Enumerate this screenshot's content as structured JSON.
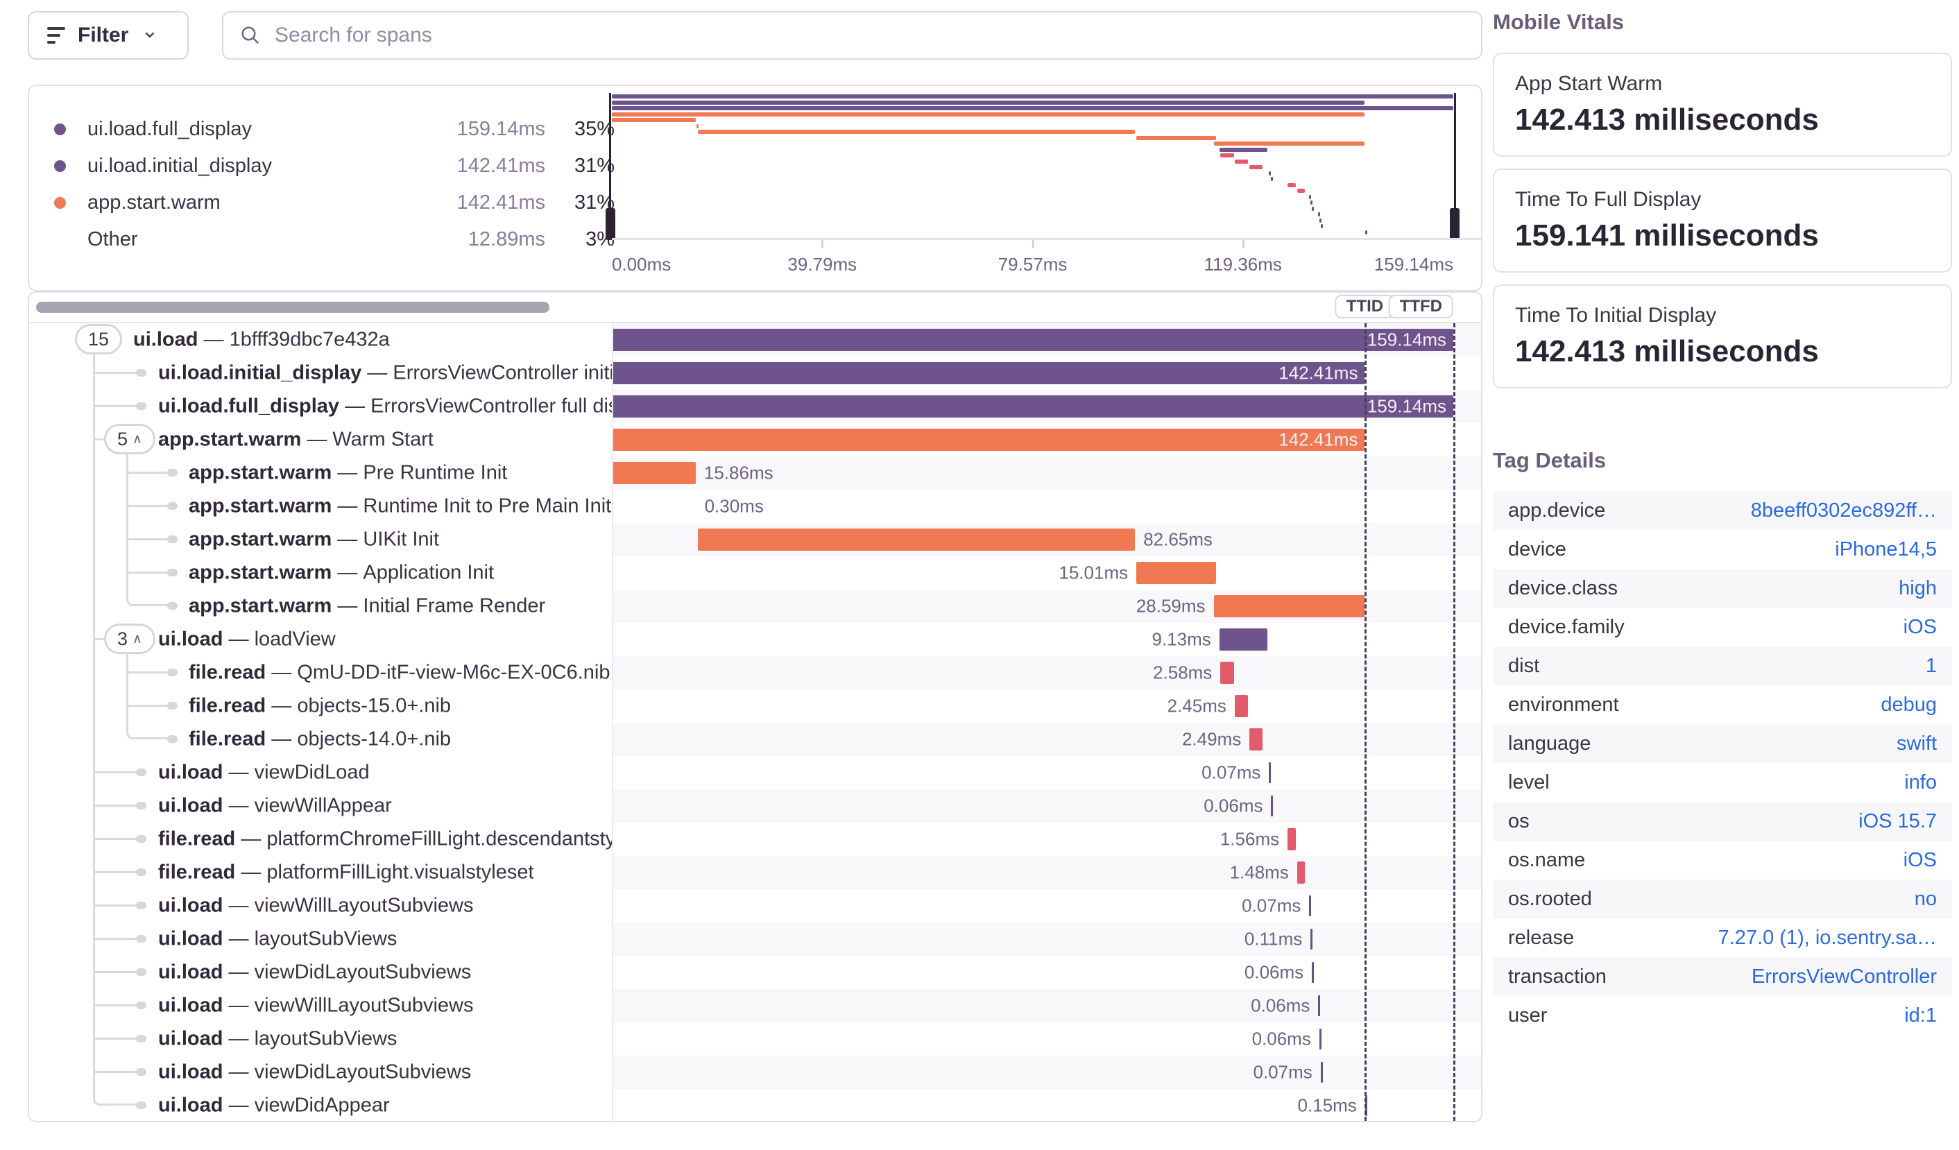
{
  "strings": {
    "sep": "—"
  },
  "filter": {
    "label": "Filter"
  },
  "search": {
    "placeholder": "Search for spans"
  },
  "legend": {
    "items": [
      {
        "label": "ui.load.full_display",
        "duration": "159.14ms",
        "percent": "35%",
        "color": "#6e538c"
      },
      {
        "label": "ui.load.initial_display",
        "duration": "142.41ms",
        "percent": "31%",
        "color": "#6e538c"
      },
      {
        "label": "app.start.warm",
        "duration": "142.41ms",
        "percent": "31%",
        "color": "#f07852"
      },
      {
        "label": "Other",
        "duration": "12.89ms",
        "percent": "3%",
        "color": ""
      }
    ]
  },
  "minimap": {
    "axis": [
      {
        "label": "0.00ms",
        "ms": 0,
        "anchor": "start"
      },
      {
        "label": "39.79ms",
        "ms": 39.79,
        "anchor": "center"
      },
      {
        "label": "79.57ms",
        "ms": 79.57,
        "anchor": "center"
      },
      {
        "label": "119.36ms",
        "ms": 119.36,
        "anchor": "center"
      },
      {
        "label": "159.14ms",
        "ms": 159.14,
        "anchor": "end"
      }
    ]
  },
  "waterfall": {
    "total_ms": 159.14,
    "ttid": {
      "label": "TTID",
      "ms": 142.41
    },
    "ttfd": {
      "label": "TTFD",
      "ms": 159.14
    }
  },
  "spans": [
    {
      "op": "ui.load",
      "desc": "1bfff39dbc7e432a",
      "depth": 0,
      "badge": "15",
      "chevron": false,
      "start": 0,
      "dur": 159.14,
      "label": "159.14ms",
      "side": "in",
      "color": "purple",
      "kind": "bar",
      "g": [
        "s1"
      ]
    },
    {
      "op": "ui.load.initial_display",
      "desc": "ErrorsViewController initial display",
      "depth": 1,
      "start": 0,
      "dur": 142.41,
      "label": "142.41ms",
      "side": "in",
      "color": "purple",
      "kind": "bar",
      "g": [
        "p1"
      ]
    },
    {
      "op": "ui.load.full_display",
      "desc": "ErrorsViewController full display",
      "depth": 1,
      "start": 0,
      "dur": 159.14,
      "label": "159.14ms",
      "side": "in",
      "color": "purple",
      "kind": "bar",
      "g": [
        "p1"
      ]
    },
    {
      "op": "app.start.warm",
      "desc": "Warm Start",
      "depth": 1,
      "badge": "5",
      "chevron": true,
      "start": 0,
      "dur": 142.41,
      "label": "142.41ms",
      "side": "in",
      "color": "orange",
      "kind": "bar",
      "g": [
        "p1",
        "s2"
      ]
    },
    {
      "op": "app.start.warm",
      "desc": "Pre Runtime Init",
      "depth": 2,
      "start": 0,
      "dur": 15.86,
      "label": "15.86ms",
      "side": "right",
      "color": "orange",
      "kind": "bar",
      "g": [
        "p1",
        "p2"
      ]
    },
    {
      "op": "app.start.warm",
      "desc": "Runtime Init to Pre Main Initializers",
      "depth": 2,
      "start": 15.95,
      "dur": 0.3,
      "label": "0.30ms",
      "side": "right",
      "color": "orange",
      "kind": "thin",
      "g": [
        "p1",
        "p2"
      ]
    },
    {
      "op": "app.start.warm",
      "desc": "UIKit Init",
      "depth": 2,
      "start": 16.3,
      "dur": 82.65,
      "label": "82.65ms",
      "side": "right",
      "color": "orange",
      "kind": "bar",
      "g": [
        "p1",
        "p2"
      ]
    },
    {
      "op": "app.start.warm",
      "desc": "Application Init",
      "depth": 2,
      "start": 99.2,
      "dur": 15.01,
      "label": "15.01ms",
      "side": "left",
      "color": "orange",
      "kind": "bar",
      "g": [
        "p1",
        "p2"
      ]
    },
    {
      "op": "app.start.warm",
      "desc": "Initial Frame Render",
      "depth": 2,
      "start": 113.82,
      "dur": 28.59,
      "label": "28.59ms",
      "side": "left",
      "color": "orange",
      "kind": "bar",
      "g": [
        "p1",
        "e2"
      ]
    },
    {
      "op": "ui.load",
      "desc": "loadView",
      "depth": 1,
      "badge": "3",
      "chevron": true,
      "start": 114.9,
      "dur": 9.13,
      "label": "9.13ms",
      "side": "left",
      "color": "purple",
      "kind": "bar",
      "g": [
        "p1",
        "s2"
      ]
    },
    {
      "op": "file.read",
      "desc": "QmU-DD-itF-view-M6c-EX-0C6.nib",
      "depth": 2,
      "start": 115.1,
      "dur": 2.58,
      "label": "2.58ms",
      "side": "left",
      "color": "pink",
      "kind": "bar",
      "g": [
        "p1",
        "p2"
      ]
    },
    {
      "op": "file.read",
      "desc": "objects-15.0+.nib",
      "depth": 2,
      "start": 117.8,
      "dur": 2.45,
      "label": "2.45ms",
      "side": "left",
      "color": "pink",
      "kind": "bar",
      "g": [
        "p1",
        "p2"
      ]
    },
    {
      "op": "file.read",
      "desc": "objects-14.0+.nib",
      "depth": 2,
      "start": 120.6,
      "dur": 2.49,
      "label": "2.49ms",
      "side": "left",
      "color": "pink",
      "kind": "bar",
      "g": [
        "p1",
        "e2"
      ]
    },
    {
      "op": "ui.load",
      "desc": "viewDidLoad",
      "depth": 1,
      "start": 124.3,
      "dur": 0.07,
      "label": "0.07ms",
      "side": "left",
      "color": "tick",
      "kind": "tick",
      "g": [
        "p1"
      ]
    },
    {
      "op": "ui.load",
      "desc": "viewWillAppear",
      "depth": 1,
      "start": 124.7,
      "dur": 0.06,
      "label": "0.06ms",
      "side": "left",
      "color": "tick",
      "kind": "tick",
      "g": [
        "p1"
      ]
    },
    {
      "op": "file.read",
      "desc": "platformChromeFillLight.descendantstyleset",
      "depth": 1,
      "start": 127.8,
      "dur": 1.56,
      "label": "1.56ms",
      "side": "left",
      "color": "pink",
      "kind": "bar",
      "g": [
        "p1"
      ]
    },
    {
      "op": "file.read",
      "desc": "platformFillLight.visualstyleset",
      "depth": 1,
      "start": 129.6,
      "dur": 1.48,
      "label": "1.48ms",
      "side": "left",
      "color": "pink",
      "kind": "bar",
      "g": [
        "p1"
      ]
    },
    {
      "op": "ui.load",
      "desc": "viewWillLayoutSubviews",
      "depth": 1,
      "start": 131.9,
      "dur": 0.07,
      "label": "0.07ms",
      "side": "left",
      "color": "tick",
      "kind": "tick",
      "g": [
        "p1"
      ]
    },
    {
      "op": "ui.load",
      "desc": "layoutSubViews",
      "depth": 1,
      "start": 132.15,
      "dur": 0.11,
      "label": "0.11ms",
      "side": "left",
      "color": "tick",
      "kind": "tick",
      "g": [
        "p1"
      ]
    },
    {
      "op": "ui.load",
      "desc": "viewDidLayoutSubviews",
      "depth": 1,
      "start": 132.4,
      "dur": 0.06,
      "label": "0.06ms",
      "side": "left",
      "color": "tick",
      "kind": "tick",
      "g": [
        "p1"
      ]
    },
    {
      "op": "ui.load",
      "desc": "viewWillLayoutSubviews",
      "depth": 1,
      "start": 133.6,
      "dur": 0.06,
      "label": "0.06ms",
      "side": "left",
      "color": "tick",
      "kind": "tick",
      "g": [
        "p1"
      ]
    },
    {
      "op": "ui.load",
      "desc": "layoutSubViews",
      "depth": 1,
      "start": 133.8,
      "dur": 0.06,
      "label": "0.06ms",
      "side": "left",
      "color": "tick",
      "kind": "tick",
      "g": [
        "p1"
      ]
    },
    {
      "op": "ui.load",
      "desc": "viewDidLayoutSubviews",
      "depth": 1,
      "start": 134.05,
      "dur": 0.07,
      "label": "0.07ms",
      "side": "left",
      "color": "tick",
      "kind": "tick",
      "g": [
        "p1"
      ]
    },
    {
      "op": "ui.load",
      "desc": "viewDidAppear",
      "depth": 1,
      "start": 142.45,
      "dur": 0.15,
      "label": "0.15ms",
      "side": "left",
      "color": "tick",
      "kind": "tick",
      "g": [
        "e1"
      ]
    }
  ],
  "vitals": {
    "title": "Mobile Vitals",
    "cards": [
      {
        "label": "App Start Warm",
        "value": "142.413 milliseconds"
      },
      {
        "label": "Time To Full Display",
        "value": "159.141 milliseconds"
      },
      {
        "label": "Time To Initial Display",
        "value": "142.413 milliseconds"
      }
    ]
  },
  "tags": {
    "title": "Tag Details",
    "rows": [
      {
        "key": "app.device",
        "value": "8beeff0302ec892ff…"
      },
      {
        "key": "device",
        "value": "iPhone14,5"
      },
      {
        "key": "device.class",
        "value": "high"
      },
      {
        "key": "device.family",
        "value": "iOS"
      },
      {
        "key": "dist",
        "value": "1"
      },
      {
        "key": "environment",
        "value": "debug"
      },
      {
        "key": "language",
        "value": "swift"
      },
      {
        "key": "level",
        "value": "info"
      },
      {
        "key": "os",
        "value": "iOS 15.7"
      },
      {
        "key": "os.name",
        "value": "iOS"
      },
      {
        "key": "os.rooted",
        "value": "no"
      },
      {
        "key": "release",
        "value": "7.27.0 (1), io.sentry.sa…"
      },
      {
        "key": "transaction",
        "value": "ErrorsViewController"
      },
      {
        "key": "user",
        "value": "id:1"
      }
    ]
  },
  "colors": {
    "purple": "#6e538c",
    "orange": "#f07852",
    "pink": "#e25b6b",
    "tick": "#6a4f82",
    "link": "#2b6adf"
  }
}
